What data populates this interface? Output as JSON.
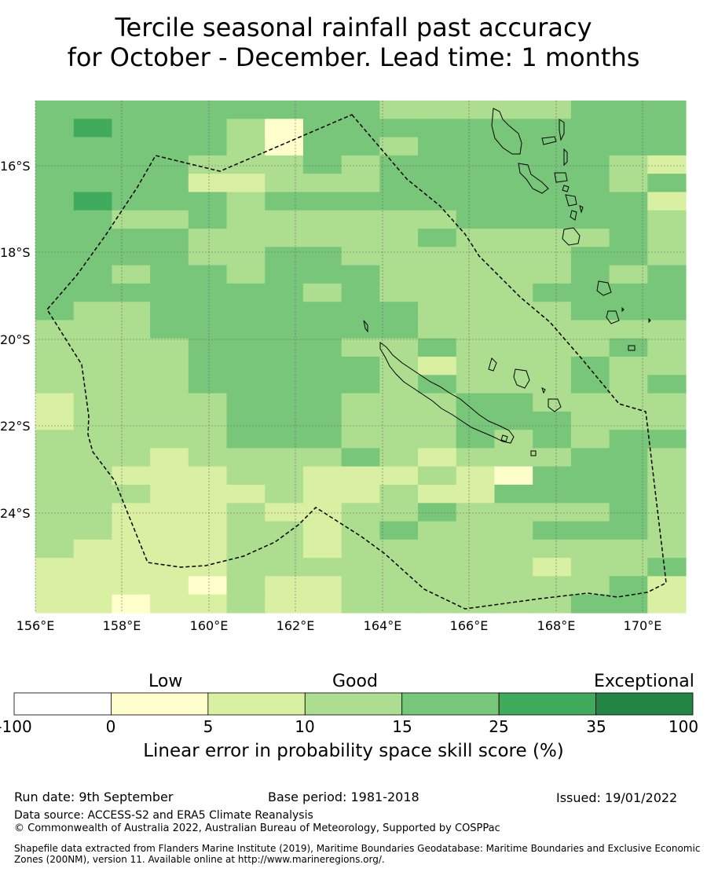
{
  "title_line1": "Tercile seasonal rainfall past accuracy",
  "title_line2": "for October - December. Lead time: 1 months",
  "map": {
    "lat_labels": [
      "16°S",
      "18°S",
      "20°S",
      "22°S",
      "24°S"
    ],
    "lon_labels": [
      "156°E",
      "158°E",
      "160°E",
      "162°E",
      "164°E",
      "166°E",
      "168°E",
      "170°E"
    ],
    "colors": [
      "#ffffff",
      "#ffffcc",
      "#d9f0a3",
      "#addd8e",
      "#78c679",
      "#41ab5d",
      "#238443"
    ],
    "boundary_color": "#000000",
    "grid": [
      "44444444433333444",
      "45444314444444444",
      "44444314434444444",
      "44443334344444432",
      "44442233344444434",
      "45444344444444442",
      "44334333333444443",
      "44443333334333343",
      "44443344333333443",
      "44344344433333434",
      "44444443433334444",
      "43344444443333444",
      "33344444443333333",
      "33334444334333343",
      "33334444432333433",
      "33334444434333434",
      "23333444333443333",
      "23333444333444333",
      "33333444333434344",
      "33323333432333443",
      "33222332223214443",
      "33322232232244443",
      "33222322334333343",
      "33222332343334443",
      "32222332333333333",
      "22222333333332334",
      "22221322333333342",
      "22122322333333442"
    ]
  },
  "colorbar": {
    "categories": [
      "Low",
      "Good",
      "Exceptional"
    ],
    "ticks": [
      "-100",
      "0",
      "5",
      "10",
      "15",
      "25",
      "35",
      "100"
    ],
    "title": "Linear error in probability space skill score (%)"
  },
  "footer": {
    "run_date": "Run date: 9th September",
    "base_period": "Base period: 1981-2018",
    "issued": "Issued: 19/01/2022",
    "data_source": "Data source: ACCESS-S2 and ERA5 Climate Reanalysis",
    "copyright": "© Commonwealth of Australia 2022, Australian Bureau of Meteorology, Supported by COSPPac",
    "shapefile": "Shapefile data extracted from Flanders Marine Institute (2019), Maritime Boundaries Geodatabase: Maritime Boundaries and Exclusive Economic Zones (200NM), version 11. Available online at http://www.marineregions.org/."
  }
}
